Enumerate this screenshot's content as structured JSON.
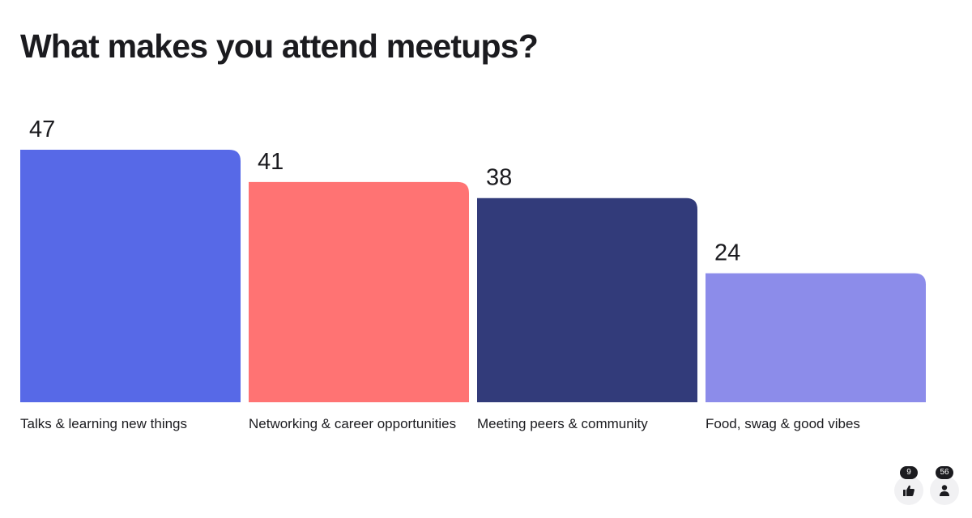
{
  "chart_data": {
    "type": "bar",
    "title": "What makes you attend meetups?",
    "categories": [
      "Talks & learning new things",
      "Networking & career opportunities",
      "Meeting peers & community",
      "Food, swag & good vibes"
    ],
    "values": [
      47,
      41,
      38,
      24
    ],
    "colors": [
      "#5769e7",
      "#ff7373",
      "#323b7a",
      "#8c8cea"
    ],
    "xlabel": "",
    "ylabel": "",
    "ylim": [
      0,
      47
    ],
    "grid": false,
    "legend": "none"
  },
  "reactions": {
    "likes": {
      "icon": "thumbs-up-icon",
      "count": "9"
    },
    "participants": {
      "icon": "person-icon",
      "count": "56"
    }
  }
}
